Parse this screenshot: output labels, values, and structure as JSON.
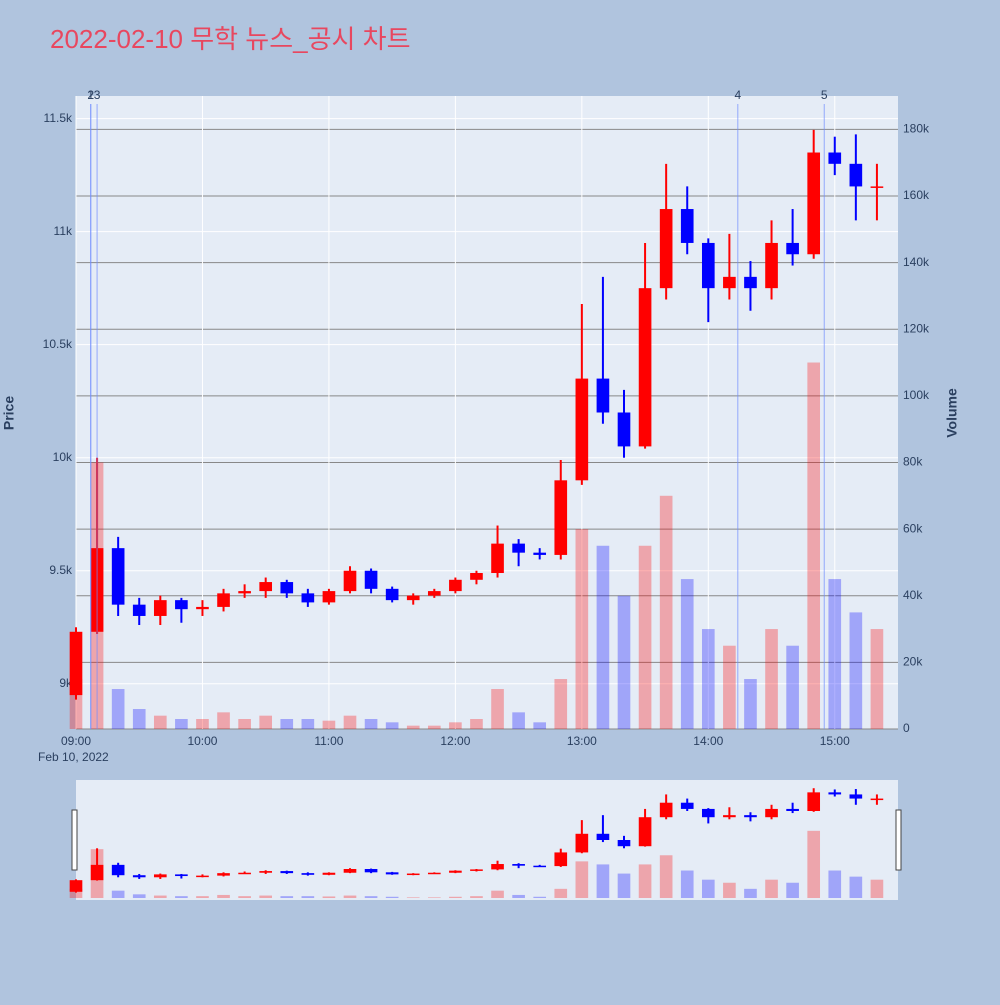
{
  "chart_data": {
    "type": "candlestick",
    "title": "2022-02-10 무학 뉴스_공시 차트",
    "y_label": "Price",
    "y2_label": "Volume",
    "date_label": "Feb 10, 2022",
    "up_color": "#ff0000",
    "down_color": "#0000ff",
    "x": [
      "09:00",
      "09:10",
      "09:20",
      "09:30",
      "09:40",
      "09:50",
      "10:00",
      "10:10",
      "10:20",
      "10:30",
      "10:40",
      "10:50",
      "11:00",
      "11:10",
      "11:20",
      "11:30",
      "11:40",
      "11:50",
      "12:00",
      "12:10",
      "12:20",
      "12:30",
      "12:40",
      "12:50",
      "13:00",
      "13:10",
      "13:20",
      "13:30",
      "13:40",
      "13:50",
      "14:00",
      "14:10",
      "14:20",
      "14:30",
      "14:40",
      "14:50",
      "15:00",
      "15:10",
      "15:20"
    ],
    "open": [
      8950,
      9230,
      9600,
      9350,
      9300,
      9370,
      9330,
      9340,
      9400,
      9410,
      9450,
      9400,
      9360,
      9410,
      9500,
      9420,
      9370,
      9390,
      9410,
      9460,
      9490,
      9620,
      9580,
      9570,
      9900,
      10350,
      10200,
      10050,
      10750,
      11100,
      10950,
      10750,
      10800,
      10750,
      10950,
      10900,
      11350,
      11300,
      11200
    ],
    "high": [
      9250,
      10000,
      9650,
      9380,
      9390,
      9380,
      9370,
      9420,
      9440,
      9470,
      9460,
      9420,
      9420,
      9520,
      9510,
      9430,
      9400,
      9420,
      9470,
      9500,
      9700,
      9640,
      9600,
      9990,
      10680,
      10800,
      10300,
      10950,
      11300,
      11200,
      10970,
      10990,
      10870,
      11050,
      11100,
      11450,
      11420,
      11430,
      11300
    ],
    "low": [
      8930,
      9220,
      9300,
      9260,
      9260,
      9270,
      9300,
      9320,
      9380,
      9380,
      9380,
      9340,
      9350,
      9400,
      9400,
      9360,
      9350,
      9380,
      9400,
      9440,
      9470,
      9520,
      9550,
      9550,
      9880,
      10150,
      10000,
      10040,
      10700,
      10900,
      10600,
      10700,
      10650,
      10700,
      10850,
      10880,
      11250,
      11050,
      11050
    ],
    "close": [
      9230,
      9600,
      9350,
      9300,
      9370,
      9330,
      9340,
      9400,
      9410,
      9450,
      9400,
      9360,
      9410,
      9500,
      9420,
      9370,
      9390,
      9410,
      9460,
      9490,
      9620,
      9580,
      9570,
      9900,
      10350,
      10200,
      10050,
      10750,
      11100,
      10950,
      10750,
      10800,
      10750,
      10950,
      10900,
      11350,
      11300,
      11200,
      11200
    ],
    "volume": [
      15000,
      80000,
      12000,
      6000,
      4000,
      3000,
      3000,
      5000,
      3000,
      4000,
      3000,
      3000,
      2500,
      4000,
      3000,
      2000,
      1000,
      1000,
      2000,
      3000,
      12000,
      5000,
      2000,
      15000,
      60000,
      55000,
      40000,
      55000,
      70000,
      45000,
      30000,
      25000,
      15000,
      30000,
      25000,
      110000,
      45000,
      35000,
      30000
    ],
    "xlim": [
      "09:00",
      "15:30"
    ],
    "xticks": [
      "09:00",
      "10:00",
      "11:00",
      "12:00",
      "13:00",
      "14:00",
      "15:00"
    ],
    "ylim": [
      8800,
      11600
    ],
    "yticks": [
      {
        "value": 9000,
        "label": "9k"
      },
      {
        "value": 9500,
        "label": "9.5k"
      },
      {
        "value": 10000,
        "label": "10k"
      },
      {
        "value": 10500,
        "label": "10.5k"
      },
      {
        "value": 11000,
        "label": "11k"
      },
      {
        "value": 11500,
        "label": "11.5k"
      }
    ],
    "y2lim": [
      0,
      190000
    ],
    "y2ticks": [
      0,
      {
        "value": 20000,
        "label": "20k"
      },
      {
        "value": 40000,
        "label": "40k"
      },
      {
        "value": 60000,
        "label": "60k"
      },
      {
        "value": 80000,
        "label": "80k"
      },
      {
        "value": 100000,
        "label": "100k"
      },
      {
        "value": 120000,
        "label": "120k"
      },
      {
        "value": 140000,
        "label": "140k"
      },
      {
        "value": 160000,
        "label": "160k"
      },
      {
        "value": 180000,
        "label": "180k"
      }
    ],
    "events": [
      {
        "x": "09:07",
        "label": "1"
      },
      {
        "x": "09:07",
        "label": "2"
      },
      {
        "x": "09:10",
        "label": "3"
      },
      {
        "x": "14:14",
        "label": "4"
      },
      {
        "x": "14:55",
        "label": "5"
      }
    ]
  }
}
